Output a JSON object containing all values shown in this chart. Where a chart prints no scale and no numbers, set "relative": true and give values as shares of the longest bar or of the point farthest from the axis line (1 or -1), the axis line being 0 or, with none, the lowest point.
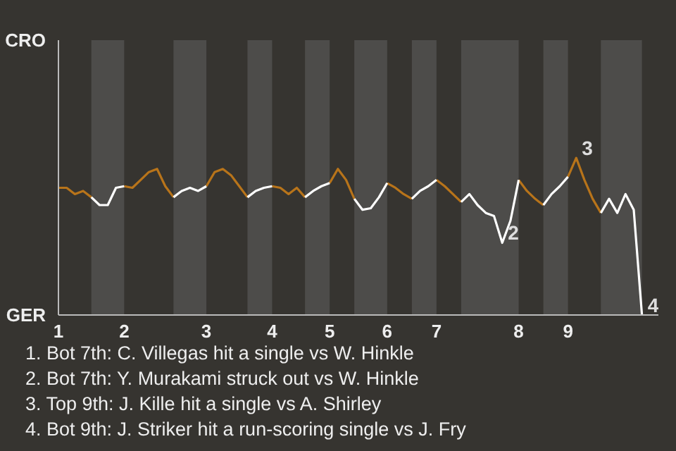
{
  "chart_data": {
    "type": "line",
    "relative": true,
    "categories": [
      "1",
      null,
      null,
      null,
      null,
      null,
      null,
      null,
      "2",
      null,
      null,
      null,
      null,
      null,
      null,
      null,
      null,
      null,
      "3",
      null,
      null,
      null,
      null,
      null,
      null,
      null,
      "4",
      null,
      null,
      null,
      null,
      null,
      null,
      "5",
      null,
      null,
      null,
      null,
      null,
      null,
      "6",
      null,
      null,
      null,
      null,
      null,
      "7",
      null,
      null,
      null,
      null,
      null,
      null,
      null,
      null,
      null,
      "8",
      null,
      null,
      null,
      null,
      null,
      "9",
      null,
      null,
      null,
      null,
      null,
      null,
      null,
      null,
      null
    ],
    "line_style": "solid",
    "series": [
      {
        "color": "#b8741a",
        "values": [
          0.81,
          0.81,
          0.77,
          0.79,
          0.75,
          null,
          null,
          null,
          0.82,
          0.81,
          0.86,
          0.91,
          0.93,
          0.82,
          0.75,
          null,
          null,
          null,
          0.82,
          0.91,
          0.93,
          0.89,
          0.82,
          0.75,
          null,
          null,
          0.82,
          0.81,
          0.77,
          0.81,
          0.75,
          null,
          null,
          0.84,
          0.93,
          0.86,
          0.74,
          null,
          null,
          null,
          0.84,
          0.81,
          0.77,
          0.74,
          null,
          null,
          0.86,
          0.82,
          0.77,
          0.72,
          null,
          null,
          null,
          null,
          null,
          null,
          0.86,
          0.79,
          0.74,
          0.7,
          null,
          null,
          0.88,
          1,
          0.86,
          0.74,
          0.65,
          null,
          null,
          null,
          null,
          null
        ]
      },
      {
        "color": "#ffffff",
        "values": [
          null,
          null,
          null,
          null,
          0.75,
          0.7,
          0.7,
          0.81,
          0.82,
          null,
          null,
          null,
          null,
          null,
          0.75,
          0.79,
          0.81,
          0.79,
          0.82,
          null,
          null,
          null,
          null,
          0.75,
          0.79,
          0.81,
          0.82,
          null,
          null,
          null,
          0.75,
          0.79,
          0.82,
          0.84,
          null,
          null,
          0.74,
          0.67,
          0.68,
          0.75,
          0.84,
          null,
          null,
          0.74,
          0.79,
          0.82,
          0.86,
          null,
          null,
          0.72,
          0.77,
          0.7,
          0.65,
          0.63,
          0.46,
          0.6,
          0.86,
          null,
          null,
          0.7,
          0.77,
          0.82,
          0.88,
          null,
          null,
          null,
          0.65,
          0.74,
          0.65,
          0.77,
          0.67,
          0
        ]
      }
    ],
    "annotations": [
      "CRO",
      "GER",
      "2",
      "3",
      "4",
      "1. Bot 7th: C. Villegas hit a single vs W. Hinkle",
      "2. Bot 7th: Y. Murakami struck out vs W. Hinkle",
      "3. Top 9th: J. Kille hit a single vs A. Shirley",
      "4. Bot 9th: J. Striker hit a run-scoring single vs J. Fry"
    ]
  }
}
